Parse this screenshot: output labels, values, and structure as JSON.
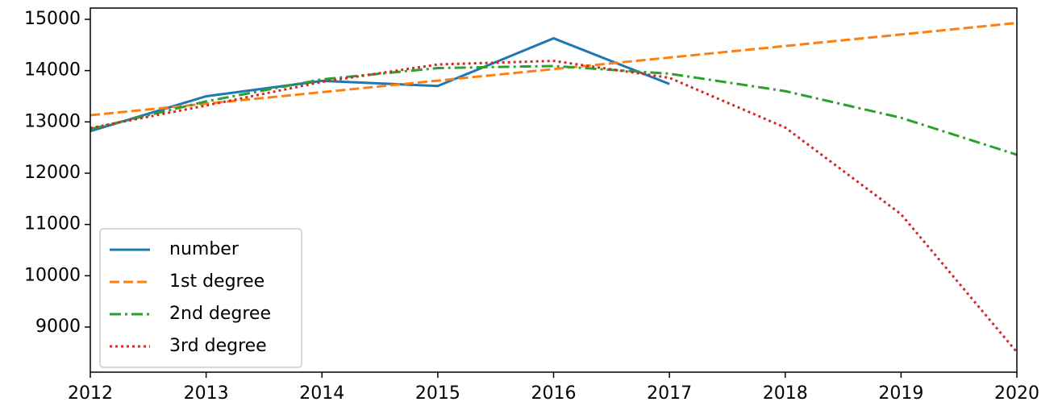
{
  "chart_data": {
    "type": "line",
    "x": [
      2012,
      2013,
      2014,
      2015,
      2016,
      2017,
      2018,
      2019,
      2020
    ],
    "series": [
      {
        "name": "number",
        "color": "#1f77b4",
        "style": "solid",
        "values": [
          12820,
          13500,
          13800,
          13700,
          14630,
          13740,
          null,
          null,
          null
        ]
      },
      {
        "name": "1st degree",
        "color": "#ff7f0e",
        "style": "dashed",
        "values": [
          13130,
          13355,
          13580,
          13805,
          14030,
          14255,
          14480,
          14705,
          14930
        ]
      },
      {
        "name": "2nd degree",
        "color": "#2ca02c",
        "style": "dashdot",
        "values": [
          12860,
          13400,
          13830,
          14050,
          14090,
          13940,
          13600,
          13080,
          12360
        ]
      },
      {
        "name": "3rd degree",
        "color": "#d62728",
        "style": "dotted",
        "values": [
          12880,
          13320,
          13780,
          14120,
          14190,
          13860,
          12890,
          11200,
          8510
        ]
      }
    ],
    "xlim": [
      2012,
      2020
    ],
    "xticks": [
      2012,
      2013,
      2014,
      2015,
      2016,
      2017,
      2018,
      2019,
      2020
    ],
    "ylim": [
      8120,
      15220
    ],
    "yticks": [
      9000,
      10000,
      11000,
      12000,
      13000,
      14000,
      15000
    ],
    "grid": false,
    "legend": "lower left"
  }
}
